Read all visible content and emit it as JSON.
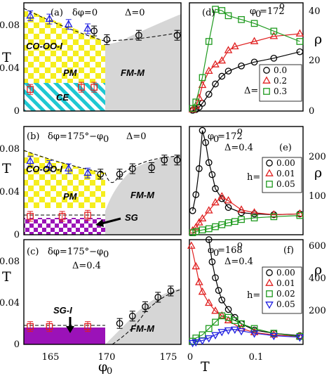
{
  "figure": {
    "colors": {
      "yellow": "#f5ee1e",
      "cyan": "#1ec8d2",
      "purple": "#9b12b8",
      "gray": "#d6d6d6",
      "blue": "#2020e0",
      "red": "#e02020",
      "green": "#1e9a1e",
      "black": "#000000"
    }
  },
  "chart_data": [
    {
      "id": "a",
      "type": "scatter",
      "label_parts": [
        "(a)",
        "δφ=0",
        "Δ=0"
      ],
      "ylabel": "T",
      "yticks": [
        "0",
        "0.04",
        "0.08"
      ],
      "ylim": [
        0,
        0.1
      ],
      "xlim": [
        163.5,
        175.8
      ],
      "phases": [
        "CO-OO-I",
        "PM",
        "CE",
        "FM-M"
      ],
      "series": [
        {
          "marker": "triangle",
          "color": "blue",
          "x": [
            164,
            165.5,
            167,
            168.5
          ],
          "y": [
            0.088,
            0.085,
            0.08,
            0.076
          ]
        },
        {
          "marker": "square",
          "color": "red",
          "x": [
            164,
            168,
            169
          ],
          "y": [
            0.02,
            0.022,
            0.022
          ]
        },
        {
          "marker": "circle",
          "color": "black",
          "x": [
            169,
            170,
            172.5,
            175.5
          ],
          "y": [
            0.074,
            0.066,
            0.07,
            0.07
          ]
        }
      ]
    },
    {
      "id": "b",
      "type": "scatter",
      "label_parts": [
        "(b)",
        "δφ=175°−φ",
        "0",
        "Δ=0"
      ],
      "ylabel": "T",
      "yticks": [
        "0",
        "0.04",
        "0.08"
      ],
      "ylim": [
        0,
        0.1
      ],
      "xlim": [
        163.5,
        175.8
      ],
      "phases": [
        "CO-OO-I",
        "PM",
        "FM-M",
        "SG"
      ],
      "series": [
        {
          "marker": "triangle",
          "color": "blue",
          "x": [
            164,
            165.5,
            167,
            168.5
          ],
          "y": [
            0.068,
            0.064,
            0.061,
            0.057
          ]
        },
        {
          "marker": "square",
          "color": "red",
          "x": [
            164,
            166.5,
            168.5
          ],
          "y": [
            0.017,
            0.017,
            0.018
          ]
        },
        {
          "marker": "circle",
          "color": "black",
          "x": [
            169.5,
            171,
            172,
            173.5,
            174.5,
            175.5
          ],
          "y": [
            0.056,
            0.056,
            0.061,
            0.062,
            0.069,
            0.069
          ]
        }
      ]
    },
    {
      "id": "c",
      "type": "scatter",
      "label_parts": [
        "(c)",
        "δφ=175°−φ",
        "0",
        "Δ=0.4"
      ],
      "ylabel": "T",
      "xlabel": "φ",
      "xlabel_sub": "0",
      "yticks": [
        "0",
        "0.04",
        "0.08"
      ],
      "xticks": [
        "165",
        "170",
        "175"
      ],
      "ylim": [
        0,
        0.1
      ],
      "xlim": [
        163.5,
        175.8
      ],
      "phases": [
        "SG-I",
        "FM-M"
      ],
      "series": [
        {
          "marker": "square",
          "color": "red",
          "x": [
            164,
            165.5,
            168.5
          ],
          "y": [
            0.017,
            0.017,
            0.017
          ]
        },
        {
          "marker": "circle",
          "color": "black",
          "x": [
            171,
            172,
            173,
            174,
            175
          ],
          "y": [
            0.02,
            0.027,
            0.036,
            0.045,
            0.051
          ]
        }
      ]
    },
    {
      "id": "d",
      "type": "line",
      "label_parts": [
        "(d)",
        "φ",
        "0",
        "=172",
        "o"
      ],
      "ylabel": "ρ",
      "yticks": [
        "0",
        "20",
        "40"
      ],
      "ylim": [
        0,
        42
      ],
      "xlim": [
        0,
        0.175
      ],
      "legend_title": "Δ=",
      "legend_position": "right",
      "series": [
        {
          "name": "0.0",
          "marker": "circle",
          "color": "black",
          "x": [
            0.005,
            0.01,
            0.015,
            0.02,
            0.03,
            0.04,
            0.05,
            0.06,
            0.08,
            0.1,
            0.13,
            0.17
          ],
          "y": [
            0.3,
            0.6,
            1.5,
            3,
            6.5,
            10.5,
            13.5,
            15.5,
            17.5,
            19,
            20.5,
            23
          ]
        },
        {
          "name": "0.2",
          "marker": "triangle",
          "color": "red",
          "x": [
            0.005,
            0.01,
            0.015,
            0.02,
            0.03,
            0.04,
            0.05,
            0.06,
            0.07,
            0.1,
            0.13,
            0.17
          ],
          "y": [
            0.5,
            2,
            5,
            10,
            15.5,
            18,
            19.5,
            23.5,
            25,
            27,
            29,
            30
          ]
        },
        {
          "name": "0.3",
          "marker": "square",
          "color": "green",
          "x": [
            0.005,
            0.01,
            0.02,
            0.03,
            0.04,
            0.05,
            0.06,
            0.08,
            0.1,
            0.13,
            0.17
          ],
          "y": [
            1,
            3.5,
            13,
            27,
            39.5,
            39,
            37,
            35.5,
            34,
            31,
            27
          ]
        }
      ]
    },
    {
      "id": "e",
      "type": "line",
      "label_parts": [
        "φ",
        "0",
        "=172",
        "o",
        "(e)",
        "Δ=0.4"
      ],
      "ylabel": "ρ",
      "yticks": [
        "100",
        "200"
      ],
      "ylim": [
        0,
        270
      ],
      "xlim": [
        0,
        0.175
      ],
      "legend_title": "h=",
      "legend_position": "right",
      "series": [
        {
          "name": "0.00",
          "marker": "circle",
          "color": "black",
          "x": [
            0.005,
            0.01,
            0.015,
            0.02,
            0.025,
            0.03,
            0.035,
            0.04,
            0.05,
            0.06,
            0.08,
            0.1,
            0.13,
            0.17
          ],
          "y": [
            60,
            100,
            165,
            260,
            230,
            180,
            150,
            115,
            90,
            68,
            55,
            52,
            50,
            52
          ]
        },
        {
          "name": "0.01",
          "marker": "triangle",
          "color": "red",
          "x": [
            0.005,
            0.01,
            0.015,
            0.02,
            0.03,
            0.04,
            0.05,
            0.06,
            0.08,
            0.1,
            0.13,
            0.17
          ],
          "y": [
            10,
            18,
            30,
            40,
            60,
            80,
            95,
            85,
            62,
            55,
            50,
            52
          ]
        },
        {
          "name": "0.05",
          "marker": "square",
          "color": "green",
          "x": [
            0.005,
            0.01,
            0.02,
            0.03,
            0.04,
            0.05,
            0.06,
            0.07,
            0.08,
            0.1,
            0.13,
            0.17
          ],
          "y": [
            5,
            8,
            12,
            15,
            20,
            25,
            30,
            33,
            38,
            42,
            45,
            48
          ]
        }
      ]
    },
    {
      "id": "f",
      "type": "line",
      "label_parts": [
        "φ",
        "0",
        "=168",
        "o",
        "(f)",
        "Δ=0.4"
      ],
      "ylabel": "ρ",
      "xlabel": "T",
      "yticks": [
        "200",
        "400",
        "600"
      ],
      "xticks": [
        "0",
        "0.1"
      ],
      "ylim": [
        0,
        660
      ],
      "xlim": [
        0,
        0.175
      ],
      "legend_title": "h=",
      "legend_position": "right",
      "series": [
        {
          "name": "0.00",
          "marker": "circle",
          "color": "black",
          "x": [
            0.03,
            0.035,
            0.04,
            0.045,
            0.05,
            0.06,
            0.07,
            0.08,
            0.1,
            0.13,
            0.17
          ],
          "y": [
            660,
            520,
            420,
            340,
            280,
            220,
            170,
            130,
            90,
            70,
            55
          ]
        },
        {
          "name": "0.01",
          "marker": "triangle",
          "color": "red",
          "x": [
            0.003,
            0.01,
            0.015,
            0.02,
            0.03,
            0.04,
            0.05,
            0.06,
            0.08,
            0.1,
            0.13,
            0.17
          ],
          "y": [
            620,
            490,
            390,
            330,
            260,
            210,
            180,
            150,
            100,
            75,
            60,
            50
          ]
        },
        {
          "name": "0.02",
          "marker": "square",
          "color": "green",
          "x": [
            0.005,
            0.01,
            0.02,
            0.03,
            0.04,
            0.05,
            0.06,
            0.07,
            0.08,
            0.1,
            0.13,
            0.17
          ],
          "y": [
            20,
            40,
            60,
            100,
            140,
            180,
            170,
            150,
            130,
            100,
            70,
            50
          ]
        },
        {
          "name": "0.05",
          "marker": "triangle-down",
          "color": "blue",
          "x": [
            0.005,
            0.01,
            0.02,
            0.03,
            0.04,
            0.05,
            0.06,
            0.07,
            0.08,
            0.1,
            0.13,
            0.17
          ],
          "y": [
            10,
            15,
            25,
            40,
            60,
            80,
            90,
            95,
            85,
            70,
            55,
            45
          ]
        }
      ]
    }
  ]
}
